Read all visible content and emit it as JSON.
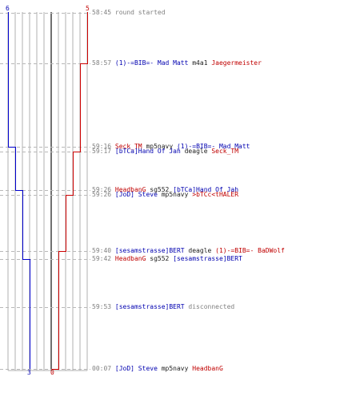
{
  "colors": {
    "blue_team": "#0000cc",
    "red_team": "#cc0000",
    "grid": "#b0b0b0",
    "center_line": "#404040"
  },
  "scores": {
    "blue_start": "6",
    "red_start": "5",
    "blue_end": "3",
    "red_end": "0"
  },
  "events": [
    {
      "time": "58:45",
      "parts": [
        {
          "text": "round started",
          "cls": "gray"
        }
      ]
    },
    {
      "time": "58:57",
      "parts": [
        {
          "text": "(1)-=BIB=- Mad Matt",
          "cls": "blue"
        },
        {
          "text": " m4a1 ",
          "cls": "dark"
        },
        {
          "text": "Jaegermeister",
          "cls": "red"
        }
      ]
    },
    {
      "time": "59:16",
      "parts": [
        {
          "text": "Seck_TM",
          "cls": "red"
        },
        {
          "text": " mp5navy ",
          "cls": "dark"
        },
        {
          "text": "(1)-=BIB=- Mad Matt",
          "cls": "blue"
        }
      ]
    },
    {
      "time": "59:17",
      "parts": [
        {
          "text": "[bTCa]Hand Of Jah",
          "cls": "blue"
        },
        {
          "text": " deagle ",
          "cls": "dark"
        },
        {
          "text": "Seck_TM",
          "cls": "red"
        }
      ]
    },
    {
      "time": "59:26",
      "parts": [
        {
          "text": "HeadbanG",
          "cls": "red"
        },
        {
          "text": " sg552 ",
          "cls": "dark"
        },
        {
          "text": "[bTCa]Hand Of Jah",
          "cls": "blue"
        }
      ]
    },
    {
      "time": "59:26",
      "parts": [
        {
          "text": "[JoD] Steve",
          "cls": "blue"
        },
        {
          "text": " mp5navy ",
          "cls": "dark"
        },
        {
          "text": ">bTCc<tHALER",
          "cls": "red"
        }
      ]
    },
    {
      "time": "59:40",
      "parts": [
        {
          "text": "[sesamstrasse]BERT",
          "cls": "blue"
        },
        {
          "text": " deagle ",
          "cls": "dark"
        },
        {
          "text": "(1)-=BIB=- BaDWolf",
          "cls": "red"
        }
      ]
    },
    {
      "time": "59:42",
      "parts": [
        {
          "text": "HeadbanG",
          "cls": "red"
        },
        {
          "text": " sg552 ",
          "cls": "dark"
        },
        {
          "text": "[sesamstrasse]BERT",
          "cls": "blue"
        }
      ]
    },
    {
      "time": "59:53",
      "parts": [
        {
          "text": "[sesamstrasse]BERT",
          "cls": "blue"
        },
        {
          "text": " disconnected",
          "cls": "gray"
        }
      ]
    },
    {
      "time": "00:07",
      "parts": [
        {
          "text": "[JoD] Steve",
          "cls": "blue"
        },
        {
          "text": " mp5navy ",
          "cls": "dark"
        },
        {
          "text": "HeadbanG",
          "cls": "red"
        }
      ]
    }
  ]
}
